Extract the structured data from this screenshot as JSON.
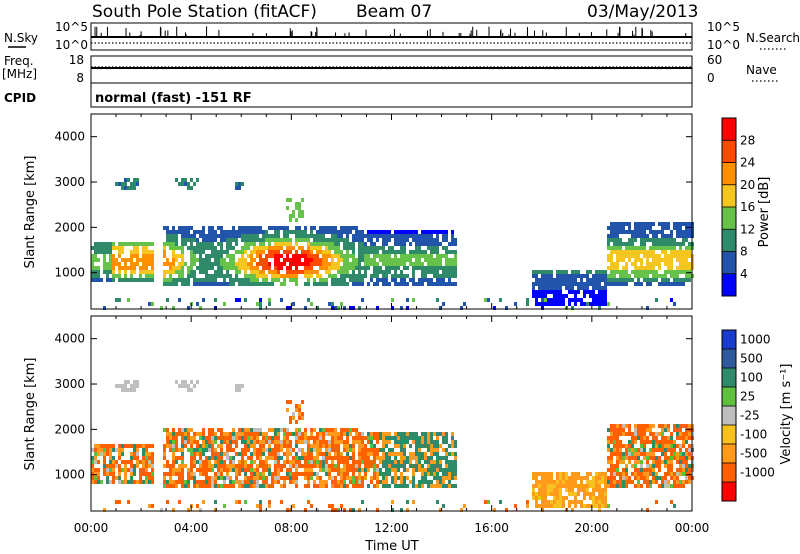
{
  "header": {
    "station": "South Pole Station (fitACF)",
    "beam": "Beam 07",
    "date": "03/May/2013"
  },
  "aux_panels": {
    "nsky_label": "N.Sky",
    "nsky_ticks": [
      "10^5",
      "10^0"
    ],
    "nsearch_label": "N.Search",
    "nsearch_ticks": [
      "10^5",
      "10^0"
    ],
    "freq_label_1": "Freq.",
    "freq_label_2": "[MHz]",
    "freq_ticks": [
      "18",
      "8"
    ],
    "nave_label": "Nave",
    "nave_ticks": [
      "60",
      "0"
    ],
    "cpid_label": "CPID",
    "cpid_text": "normal (fast) -151 RF"
  },
  "chart_data": [
    {
      "type": "heatmap",
      "panel": "power",
      "ylabel": "Slant Range [km]",
      "yticks": [
        "1000",
        "2000",
        "3000",
        "4000"
      ],
      "ylim": [
        200,
        4500
      ],
      "x_ticks": [
        "00:00",
        "04:00",
        "08:00",
        "12:00",
        "16:00",
        "20:00",
        "00:00"
      ],
      "colorbar": {
        "label": "Power [dB]",
        "ticks": [
          "4",
          "8",
          "12",
          "16",
          "20",
          "24",
          "28"
        ],
        "colors": [
          "#0000ff",
          "#2255aa",
          "#2f8a6a",
          "#66c24a",
          "#f4c61f",
          "#ff9000",
          "#ff4a00",
          "#ff0000"
        ]
      }
    },
    {
      "type": "heatmap",
      "panel": "velocity",
      "ylabel": "Slant Range [km]",
      "yticks": [
        "1000",
        "2000",
        "3000",
        "4000"
      ],
      "ylim": [
        200,
        4500
      ],
      "x_ticks": [
        "00:00",
        "04:00",
        "08:00",
        "12:00",
        "16:00",
        "20:00",
        "00:00"
      ],
      "xlabel": "Time UT",
      "colorbar": {
        "label": "Velocity [m s⁻¹]",
        "ticks": [
          "1000",
          "500",
          "100",
          "25",
          "-25",
          "-100",
          "-500",
          "-1000"
        ],
        "colors": [
          "#1a3ccc",
          "#2f5a9e",
          "#2f8a6a",
          "#5fbf3f",
          "#bfbfbf",
          "#f7c21f",
          "#ff9a1a",
          "#ff6000",
          "#ff0000"
        ]
      }
    }
  ]
}
